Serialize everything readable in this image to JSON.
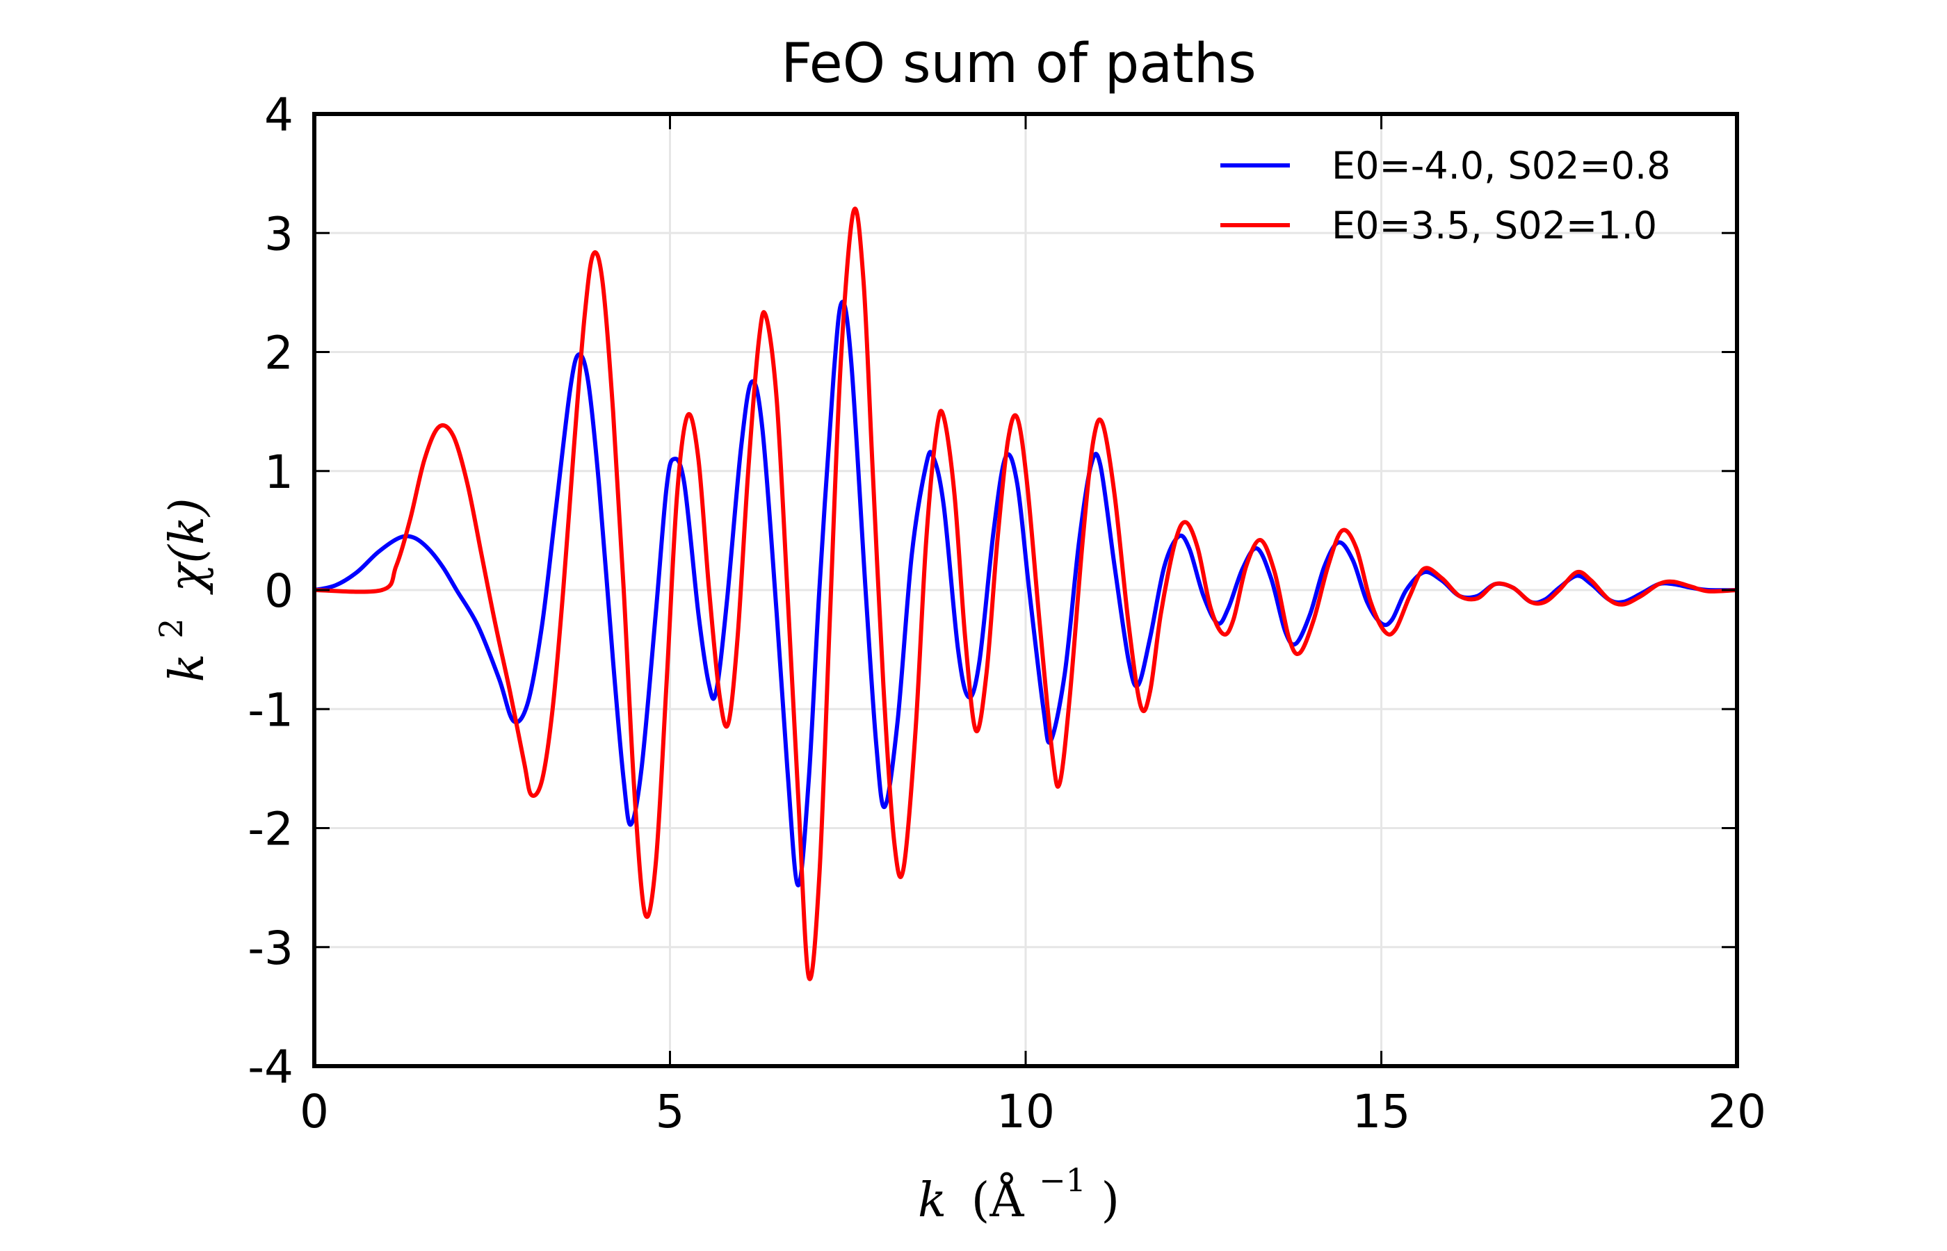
{
  "chart_data": {
    "type": "line",
    "title": "FeO sum of paths",
    "xlabel": "k (Å^-1)",
    "xlabel_parts": {
      "main": "k",
      "unit": "(Å",
      "exp": "−1",
      "close": ")"
    },
    "ylabel": "k^2 χ(k)",
    "ylabel_parts": {
      "k": "k",
      "exp": "2",
      "chi": "χ(k)"
    },
    "xlim": [
      0,
      20
    ],
    "ylim": [
      -4,
      4
    ],
    "xticks": [
      0,
      5,
      10,
      15,
      20
    ],
    "xtick_labels": [
      "0",
      "5",
      "10",
      "15",
      "20"
    ],
    "yticks": [
      -4,
      -3,
      -2,
      -1,
      0,
      1,
      2,
      3,
      4
    ],
    "ytick_labels": [
      "-4",
      "-3",
      "-2",
      "-1",
      "0",
      "1",
      "2",
      "3",
      "4"
    ],
    "grid": true,
    "legend_position": "top-right",
    "series": [
      {
        "name": "E0=-4.0, S02=0.8",
        "color": "#0000ff",
        "points": [
          [
            0,
            0
          ],
          [
            0.3,
            0.04
          ],
          [
            0.6,
            0.15
          ],
          [
            0.9,
            0.32
          ],
          [
            1.2,
            0.44
          ],
          [
            1.4,
            0.44
          ],
          [
            1.6,
            0.35
          ],
          [
            1.8,
            0.2
          ],
          [
            2.0,
            0.0
          ],
          [
            2.3,
            -0.3
          ],
          [
            2.6,
            -0.75
          ],
          [
            2.8,
            -1.1
          ],
          [
            3.0,
            -0.95
          ],
          [
            3.2,
            -0.3
          ],
          [
            3.4,
            0.7
          ],
          [
            3.6,
            1.7
          ],
          [
            3.72,
            1.98
          ],
          [
            3.85,
            1.75
          ],
          [
            4.0,
            0.9
          ],
          [
            4.2,
            -0.6
          ],
          [
            4.35,
            -1.6
          ],
          [
            4.45,
            -1.97
          ],
          [
            4.6,
            -1.5
          ],
          [
            4.8,
            -0.2
          ],
          [
            4.95,
            0.85
          ],
          [
            5.05,
            1.1
          ],
          [
            5.2,
            0.9
          ],
          [
            5.4,
            -0.2
          ],
          [
            5.55,
            -0.8
          ],
          [
            5.65,
            -0.85
          ],
          [
            5.8,
            -0.1
          ],
          [
            6.0,
            1.2
          ],
          [
            6.15,
            1.75
          ],
          [
            6.3,
            1.35
          ],
          [
            6.5,
            -0.2
          ],
          [
            6.65,
            -1.5
          ],
          [
            6.8,
            -2.48
          ],
          [
            6.95,
            -1.6
          ],
          [
            7.1,
            0.0
          ],
          [
            7.3,
            1.8
          ],
          [
            7.42,
            2.42
          ],
          [
            7.55,
            1.9
          ],
          [
            7.75,
            0.0
          ],
          [
            7.9,
            -1.3
          ],
          [
            8.02,
            -1.82
          ],
          [
            8.2,
            -1.1
          ],
          [
            8.4,
            0.3
          ],
          [
            8.6,
            1.05
          ],
          [
            8.7,
            1.12
          ],
          [
            8.85,
            0.7
          ],
          [
            9.05,
            -0.5
          ],
          [
            9.2,
            -0.9
          ],
          [
            9.35,
            -0.6
          ],
          [
            9.55,
            0.5
          ],
          [
            9.72,
            1.12
          ],
          [
            9.88,
            0.9
          ],
          [
            10.05,
            0.0
          ],
          [
            10.25,
            -1.0
          ],
          [
            10.35,
            -1.27
          ],
          [
            10.55,
            -0.7
          ],
          [
            10.75,
            0.4
          ],
          [
            10.92,
            1.05
          ],
          [
            11.05,
            1.05
          ],
          [
            11.25,
            0.2
          ],
          [
            11.45,
            -0.6
          ],
          [
            11.58,
            -0.8
          ],
          [
            11.75,
            -0.4
          ],
          [
            11.95,
            0.2
          ],
          [
            12.15,
            0.45
          ],
          [
            12.3,
            0.35
          ],
          [
            12.5,
            -0.05
          ],
          [
            12.7,
            -0.28
          ],
          [
            12.85,
            -0.15
          ],
          [
            13.05,
            0.18
          ],
          [
            13.25,
            0.35
          ],
          [
            13.45,
            0.1
          ],
          [
            13.65,
            -0.35
          ],
          [
            13.8,
            -0.45
          ],
          [
            14.0,
            -0.2
          ],
          [
            14.2,
            0.2
          ],
          [
            14.4,
            0.4
          ],
          [
            14.6,
            0.25
          ],
          [
            14.8,
            -0.1
          ],
          [
            15.0,
            -0.28
          ],
          [
            15.15,
            -0.25
          ],
          [
            15.35,
            0.0
          ],
          [
            15.6,
            0.15
          ],
          [
            15.85,
            0.08
          ],
          [
            16.1,
            -0.05
          ],
          [
            16.35,
            -0.05
          ],
          [
            16.6,
            0.05
          ],
          [
            16.85,
            0.02
          ],
          [
            17.1,
            -0.1
          ],
          [
            17.3,
            -0.08
          ],
          [
            17.5,
            0.02
          ],
          [
            17.75,
            0.12
          ],
          [
            17.95,
            0.05
          ],
          [
            18.2,
            -0.08
          ],
          [
            18.4,
            -0.1
          ],
          [
            18.65,
            -0.03
          ],
          [
            18.9,
            0.05
          ],
          [
            19.1,
            0.05
          ],
          [
            19.35,
            0.02
          ],
          [
            19.6,
            0.0
          ],
          [
            20.0,
            0.0
          ]
        ]
      },
      {
        "name": "E0=3.5, S02=1.0",
        "color": "#ff0000",
        "points": [
          [
            0,
            0
          ],
          [
            0.95,
            0.0
          ],
          [
            1.15,
            0.2
          ],
          [
            1.35,
            0.6
          ],
          [
            1.55,
            1.1
          ],
          [
            1.75,
            1.37
          ],
          [
            1.95,
            1.3
          ],
          [
            2.15,
            0.9
          ],
          [
            2.35,
            0.3
          ],
          [
            2.55,
            -0.3
          ],
          [
            2.75,
            -0.85
          ],
          [
            2.95,
            -1.45
          ],
          [
            3.05,
            -1.72
          ],
          [
            3.2,
            -1.6
          ],
          [
            3.35,
            -1.0
          ],
          [
            3.5,
            0.0
          ],
          [
            3.65,
            1.2
          ],
          [
            3.8,
            2.3
          ],
          [
            3.92,
            2.82
          ],
          [
            4.05,
            2.6
          ],
          [
            4.2,
            1.5
          ],
          [
            4.35,
            0.0
          ],
          [
            4.5,
            -1.7
          ],
          [
            4.65,
            -2.72
          ],
          [
            4.8,
            -2.3
          ],
          [
            4.95,
            -0.8
          ],
          [
            5.1,
            0.8
          ],
          [
            5.25,
            1.47
          ],
          [
            5.4,
            1.1
          ],
          [
            5.55,
            0.0
          ],
          [
            5.7,
            -0.9
          ],
          [
            5.82,
            -1.12
          ],
          [
            5.95,
            -0.4
          ],
          [
            6.1,
            1.0
          ],
          [
            6.25,
            2.1
          ],
          [
            6.35,
            2.3
          ],
          [
            6.5,
            1.6
          ],
          [
            6.65,
            0.0
          ],
          [
            6.8,
            -1.7
          ],
          [
            6.95,
            -3.25
          ],
          [
            7.1,
            -2.4
          ],
          [
            7.25,
            -0.2
          ],
          [
            7.4,
            1.9
          ],
          [
            7.58,
            3.18
          ],
          [
            7.72,
            2.6
          ],
          [
            7.85,
            1.0
          ],
          [
            8.0,
            -0.8
          ],
          [
            8.15,
            -2.1
          ],
          [
            8.28,
            -2.35
          ],
          [
            8.45,
            -1.2
          ],
          [
            8.6,
            0.4
          ],
          [
            8.75,
            1.35
          ],
          [
            8.85,
            1.45
          ],
          [
            9.0,
            0.8
          ],
          [
            9.15,
            -0.4
          ],
          [
            9.3,
            -1.18
          ],
          [
            9.45,
            -0.7
          ],
          [
            9.6,
            0.4
          ],
          [
            9.75,
            1.25
          ],
          [
            9.88,
            1.45
          ],
          [
            10.02,
            0.9
          ],
          [
            10.2,
            -0.3
          ],
          [
            10.38,
            -1.4
          ],
          [
            10.48,
            -1.62
          ],
          [
            10.62,
            -0.9
          ],
          [
            10.8,
            0.4
          ],
          [
            10.95,
            1.25
          ],
          [
            11.08,
            1.4
          ],
          [
            11.25,
            0.8
          ],
          [
            11.45,
            -0.3
          ],
          [
            11.62,
            -0.98
          ],
          [
            11.75,
            -0.85
          ],
          [
            11.9,
            -0.2
          ],
          [
            12.1,
            0.4
          ],
          [
            12.25,
            0.57
          ],
          [
            12.42,
            0.35
          ],
          [
            12.6,
            -0.15
          ],
          [
            12.78,
            -0.37
          ],
          [
            12.92,
            -0.25
          ],
          [
            13.1,
            0.2
          ],
          [
            13.3,
            0.42
          ],
          [
            13.5,
            0.15
          ],
          [
            13.7,
            -0.4
          ],
          [
            13.85,
            -0.53
          ],
          [
            14.05,
            -0.25
          ],
          [
            14.25,
            0.2
          ],
          [
            14.45,
            0.5
          ],
          [
            14.65,
            0.35
          ],
          [
            14.85,
            -0.1
          ],
          [
            15.05,
            -0.35
          ],
          [
            15.2,
            -0.33
          ],
          [
            15.4,
            -0.05
          ],
          [
            15.6,
            0.18
          ],
          [
            15.85,
            0.1
          ],
          [
            16.1,
            -0.05
          ],
          [
            16.35,
            -0.07
          ],
          [
            16.6,
            0.05
          ],
          [
            16.85,
            0.02
          ],
          [
            17.1,
            -0.1
          ],
          [
            17.3,
            -0.1
          ],
          [
            17.5,
            0.0
          ],
          [
            17.75,
            0.15
          ],
          [
            17.95,
            0.08
          ],
          [
            18.2,
            -0.08
          ],
          [
            18.4,
            -0.12
          ],
          [
            18.65,
            -0.05
          ],
          [
            18.9,
            0.05
          ],
          [
            19.1,
            0.07
          ],
          [
            19.35,
            0.03
          ],
          [
            19.6,
            -0.01
          ],
          [
            20.0,
            0.0
          ]
        ]
      }
    ]
  }
}
